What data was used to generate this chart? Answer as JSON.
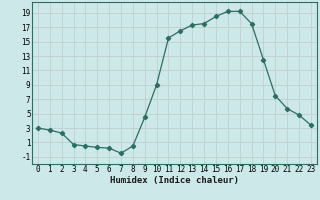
{
  "x": [
    0,
    1,
    2,
    3,
    4,
    5,
    6,
    7,
    8,
    9,
    10,
    11,
    12,
    13,
    14,
    15,
    16,
    17,
    18,
    19,
    20,
    21,
    22,
    23
  ],
  "y": [
    3,
    2.7,
    2.3,
    0.7,
    0.5,
    0.3,
    0.2,
    -0.5,
    0.5,
    4.5,
    9,
    15.5,
    16.5,
    17.3,
    17.5,
    18.5,
    19.2,
    19.2,
    17.5,
    12.5,
    7.5,
    5.7,
    4.8,
    3.4
  ],
  "line_color": "#2d6e62",
  "marker": "D",
  "marker_size": 2.2,
  "bg_color": "#cce8e8",
  "grid_color_minor": "#b8d8d8",
  "grid_color_major": "#e8b0b0",
  "xlabel": "Humidex (Indice chaleur)",
  "xlim": [
    -0.5,
    23.5
  ],
  "ylim": [
    -2,
    20.5
  ],
  "yticks": [
    -1,
    1,
    3,
    5,
    7,
    9,
    11,
    13,
    15,
    17,
    19
  ],
  "xticks": [
    0,
    1,
    2,
    3,
    4,
    5,
    6,
    7,
    8,
    9,
    10,
    11,
    12,
    13,
    14,
    15,
    16,
    17,
    18,
    19,
    20,
    21,
    22,
    23
  ],
  "font_size": 5.5,
  "xlabel_fontsize": 6.5
}
